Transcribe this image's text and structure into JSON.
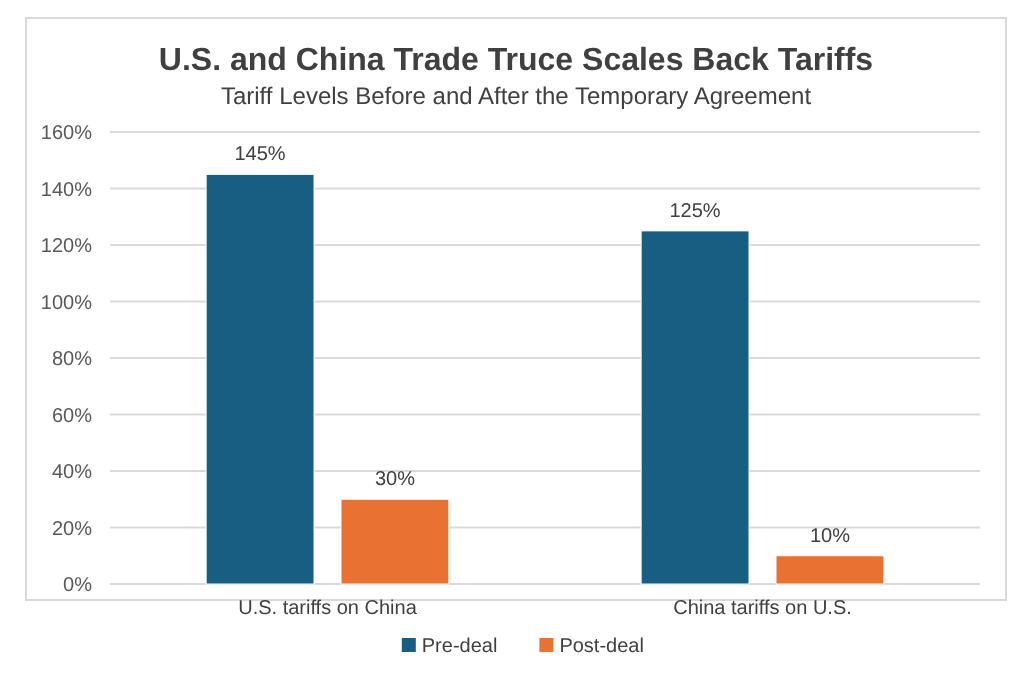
{
  "chart_data": {
    "type": "bar",
    "title": "U.S. and China Trade Truce Scales Back Tariffs",
    "subtitle": "Tariff Levels Before and After the Temporary Agreement",
    "categories": [
      "U.S. tariffs on China",
      "China tariffs on U.S."
    ],
    "series": [
      {
        "name": "Pre-deal",
        "color": "#175e82",
        "values": [
          145,
          125
        ],
        "value_labels": [
          "145%",
          "125%"
        ]
      },
      {
        "name": "Post-deal",
        "color": "#e97132",
        "values": [
          30,
          10
        ],
        "value_labels": [
          "30%",
          "10%"
        ]
      }
    ],
    "ylim": [
      0,
      160
    ],
    "yticks": [
      {
        "value": 0,
        "label": "0%"
      },
      {
        "value": 20,
        "label": "20%"
      },
      {
        "value": 40,
        "label": "40%"
      },
      {
        "value": 60,
        "label": "60%"
      },
      {
        "value": 80,
        "label": "80%"
      },
      {
        "value": 100,
        "label": "100%"
      },
      {
        "value": 120,
        "label": "120%"
      },
      {
        "value": 140,
        "label": "140%"
      },
      {
        "value": 160,
        "label": "160%"
      }
    ],
    "grid": "y",
    "legend": "bottom"
  }
}
